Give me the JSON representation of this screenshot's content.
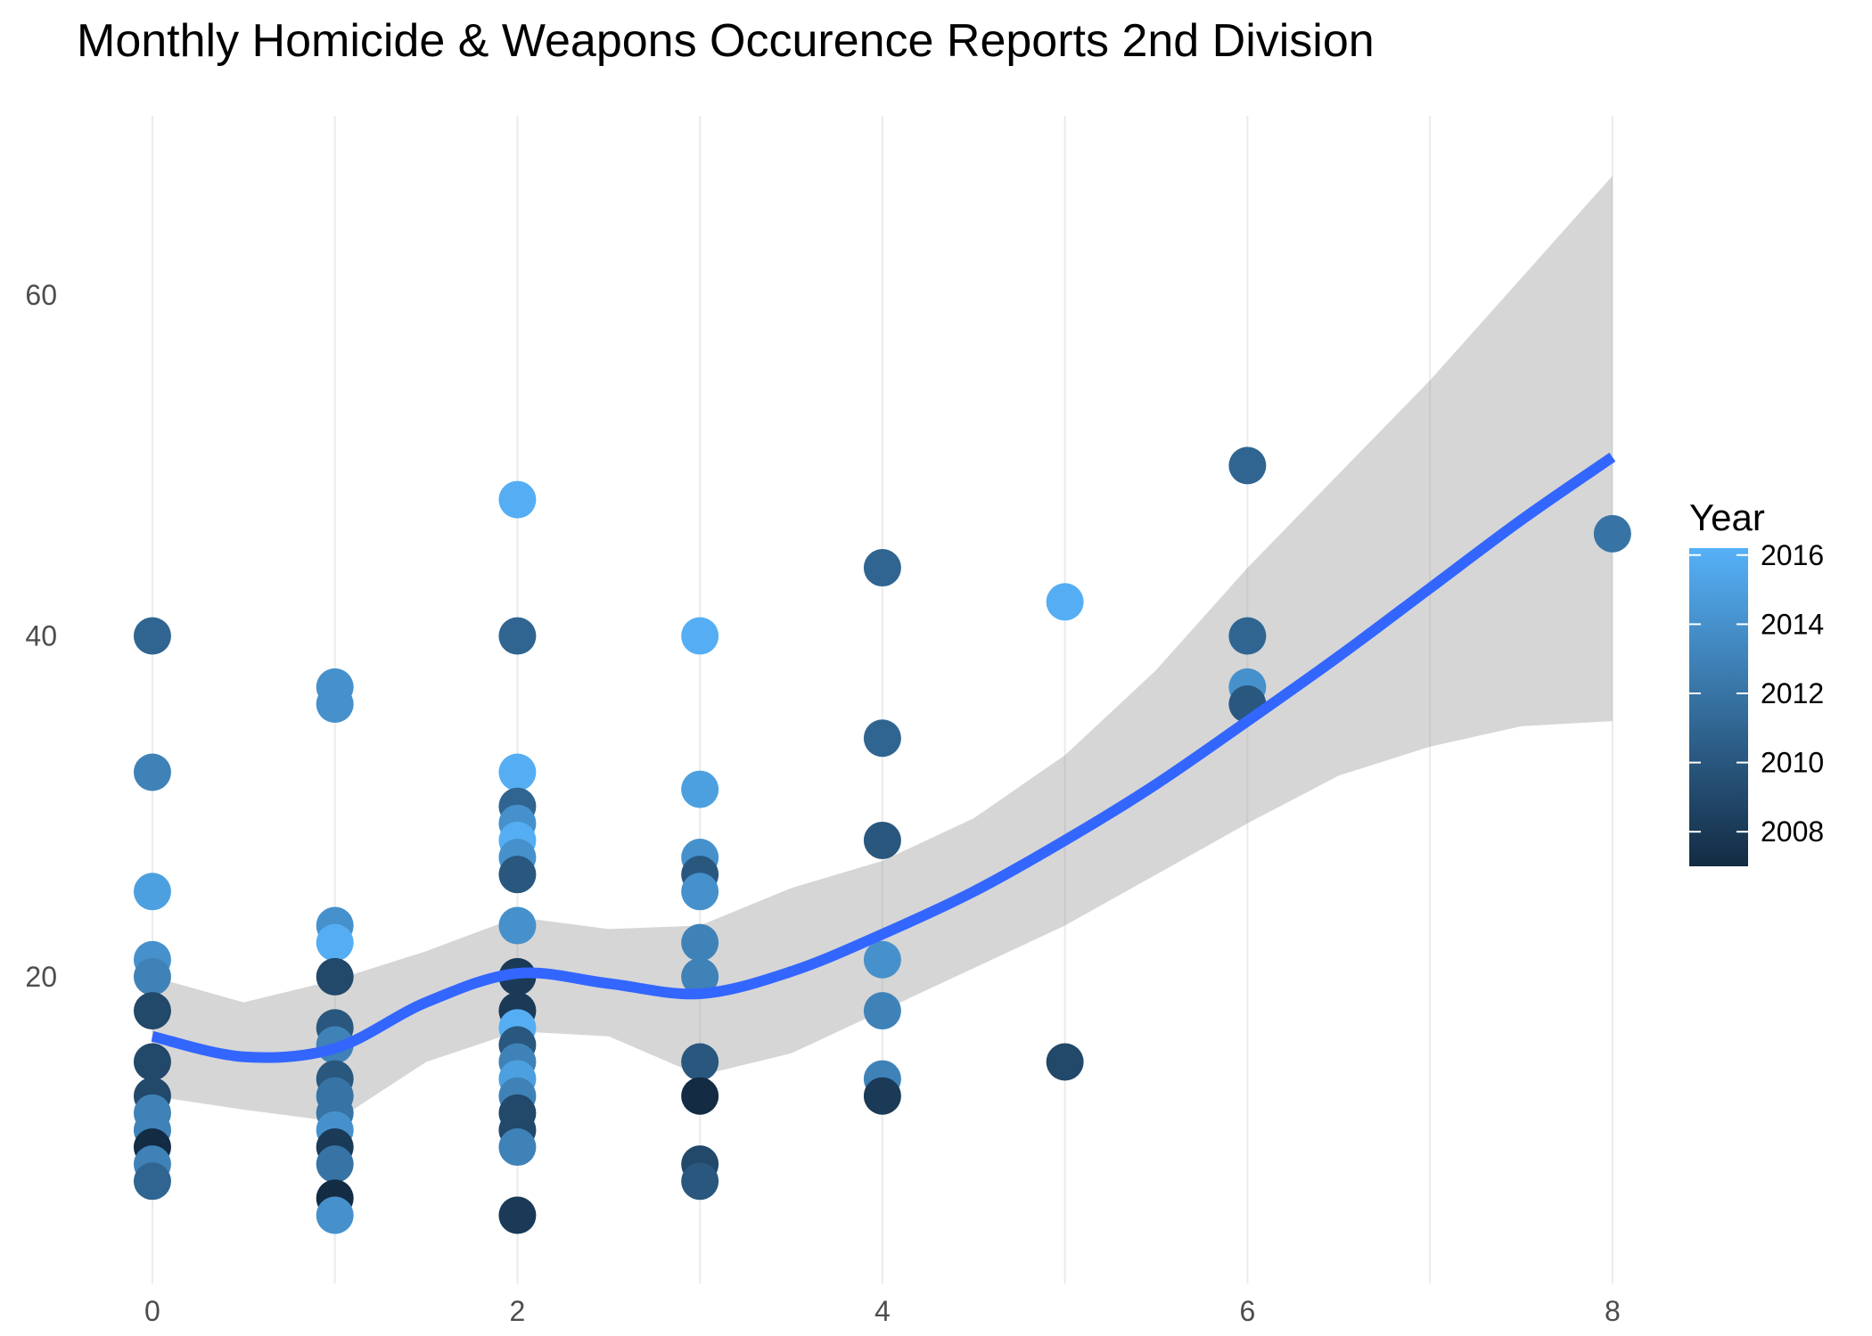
{
  "chart_data": {
    "type": "scatter",
    "title": "Monthly Homicide & Weapons Occurence Reports 2nd Division",
    "xlabel": "",
    "ylabel": "",
    "xlim": [
      -0.2,
      9.3
    ],
    "ylim": [
      2,
      70
    ],
    "x_ticks": [
      0,
      2,
      4,
      6,
      8
    ],
    "x_minor_grid": [
      1,
      3,
      5,
      7
    ],
    "y_ticks": [
      20,
      40,
      60
    ],
    "grid": "vertical only",
    "legend": {
      "title": "Year",
      "position": "right",
      "labels": [
        2008,
        2010,
        2012,
        2014,
        2016
      ],
      "range": [
        2007,
        2016.2
      ],
      "color_low": "#132B43",
      "color_high": "#56B1F7"
    },
    "points": [
      {
        "x": 0,
        "y": 40,
        "year": 2011
      },
      {
        "x": 0,
        "y": 32,
        "year": 2013
      },
      {
        "x": 0,
        "y": 25,
        "year": 2015
      },
      {
        "x": 0,
        "y": 21,
        "year": 2014
      },
      {
        "x": 0,
        "y": 20,
        "year": 2013
      },
      {
        "x": 0,
        "y": 18,
        "year": 2009
      },
      {
        "x": 0,
        "y": 15,
        "year": 2009
      },
      {
        "x": 0,
        "y": 13,
        "year": 2009
      },
      {
        "x": 0,
        "y": 12,
        "year": 2013
      },
      {
        "x": 0,
        "y": 11,
        "year": 2013
      },
      {
        "x": 0,
        "y": 10,
        "year": 2007
      },
      {
        "x": 0,
        "y": 9,
        "year": 2013
      },
      {
        "x": 0,
        "y": 8,
        "year": 2011
      },
      {
        "x": 1,
        "y": 37,
        "year": 2014
      },
      {
        "x": 1,
        "y": 36,
        "year": 2014
      },
      {
        "x": 1,
        "y": 23,
        "year": 2014
      },
      {
        "x": 1,
        "y": 22,
        "year": 2016
      },
      {
        "x": 1,
        "y": 20,
        "year": 2009
      },
      {
        "x": 1,
        "y": 17,
        "year": 2010
      },
      {
        "x": 1,
        "y": 16,
        "year": 2013
      },
      {
        "x": 1,
        "y": 14,
        "year": 2010
      },
      {
        "x": 1,
        "y": 13,
        "year": 2012
      },
      {
        "x": 1,
        "y": 12,
        "year": 2012
      },
      {
        "x": 1,
        "y": 11,
        "year": 2014
      },
      {
        "x": 1,
        "y": 10,
        "year": 2008
      },
      {
        "x": 1,
        "y": 9,
        "year": 2012
      },
      {
        "x": 1,
        "y": 7,
        "year": 2007
      },
      {
        "x": 1,
        "y": 6,
        "year": 2014
      },
      {
        "x": 2,
        "y": 48,
        "year": 2016
      },
      {
        "x": 2,
        "y": 40,
        "year": 2011
      },
      {
        "x": 2,
        "y": 32,
        "year": 2016
      },
      {
        "x": 2,
        "y": 30,
        "year": 2011
      },
      {
        "x": 2,
        "y": 29,
        "year": 2014
      },
      {
        "x": 2,
        "y": 28,
        "year": 2016
      },
      {
        "x": 2,
        "y": 27,
        "year": 2014
      },
      {
        "x": 2,
        "y": 26,
        "year": 2010
      },
      {
        "x": 2,
        "y": 23,
        "year": 2014
      },
      {
        "x": 2,
        "y": 20,
        "year": 2008
      },
      {
        "x": 2,
        "y": 18,
        "year": 2008
      },
      {
        "x": 2,
        "y": 17,
        "year": 2016
      },
      {
        "x": 2,
        "y": 16,
        "year": 2010
      },
      {
        "x": 2,
        "y": 15,
        "year": 2013
      },
      {
        "x": 2,
        "y": 14,
        "year": 2015
      },
      {
        "x": 2,
        "y": 13,
        "year": 2013
      },
      {
        "x": 2,
        "y": 12,
        "year": 2009
      },
      {
        "x": 2,
        "y": 11,
        "year": 2009
      },
      {
        "x": 2,
        "y": 10,
        "year": 2013
      },
      {
        "x": 2,
        "y": 6,
        "year": 2008
      },
      {
        "x": 3,
        "y": 40,
        "year": 2016
      },
      {
        "x": 3,
        "y": 31,
        "year": 2015
      },
      {
        "x": 3,
        "y": 27,
        "year": 2014
      },
      {
        "x": 3,
        "y": 26,
        "year": 2010
      },
      {
        "x": 3,
        "y": 25,
        "year": 2014
      },
      {
        "x": 3,
        "y": 22,
        "year": 2013
      },
      {
        "x": 3,
        "y": 20,
        "year": 2013
      },
      {
        "x": 3,
        "y": 15,
        "year": 2010
      },
      {
        "x": 3,
        "y": 13,
        "year": 2007
      },
      {
        "x": 3,
        "y": 9,
        "year": 2009
      },
      {
        "x": 3,
        "y": 8,
        "year": 2010
      },
      {
        "x": 4,
        "y": 44,
        "year": 2011
      },
      {
        "x": 4,
        "y": 34,
        "year": 2011
      },
      {
        "x": 4,
        "y": 28,
        "year": 2010
      },
      {
        "x": 4,
        "y": 21,
        "year": 2014
      },
      {
        "x": 4,
        "y": 18,
        "year": 2013
      },
      {
        "x": 4,
        "y": 14,
        "year": 2013
      },
      {
        "x": 4,
        "y": 13,
        "year": 2008
      },
      {
        "x": 5,
        "y": 42,
        "year": 2016
      },
      {
        "x": 5,
        "y": 15,
        "year": 2009
      },
      {
        "x": 6,
        "y": 50,
        "year": 2011
      },
      {
        "x": 6,
        "y": 40,
        "year": 2011
      },
      {
        "x": 6,
        "y": 37,
        "year": 2014
      },
      {
        "x": 6,
        "y": 36,
        "year": 2010
      },
      {
        "x": 8,
        "y": 46,
        "year": 2012
      }
    ],
    "smooth": {
      "color": "#3366FF",
      "x": [
        0,
        0.5,
        1,
        1.5,
        2,
        2.5,
        3,
        3.5,
        4,
        4.5,
        5,
        5.5,
        6,
        6.5,
        7,
        7.5,
        8
      ],
      "y": [
        16.5,
        15.3,
        15.8,
        18.5,
        20.2,
        19.6,
        19.0,
        20.3,
        22.5,
        25.0,
        28.0,
        31.3,
        35.0,
        38.8,
        42.8,
        46.8,
        50.5
      ],
      "ci_low": [
        13.0,
        12.2,
        11.5,
        15.0,
        16.8,
        16.5,
        14.2,
        15.5,
        18.0,
        20.5,
        23.0,
        26.0,
        29.0,
        31.8,
        33.5,
        34.7,
        35.0
      ],
      "ci_high": [
        20.0,
        18.5,
        19.8,
        21.5,
        23.5,
        22.8,
        23.0,
        25.2,
        26.8,
        29.3,
        33.0,
        38.0,
        44.0,
        49.5,
        55.0,
        61.0,
        67.0
      ]
    }
  }
}
